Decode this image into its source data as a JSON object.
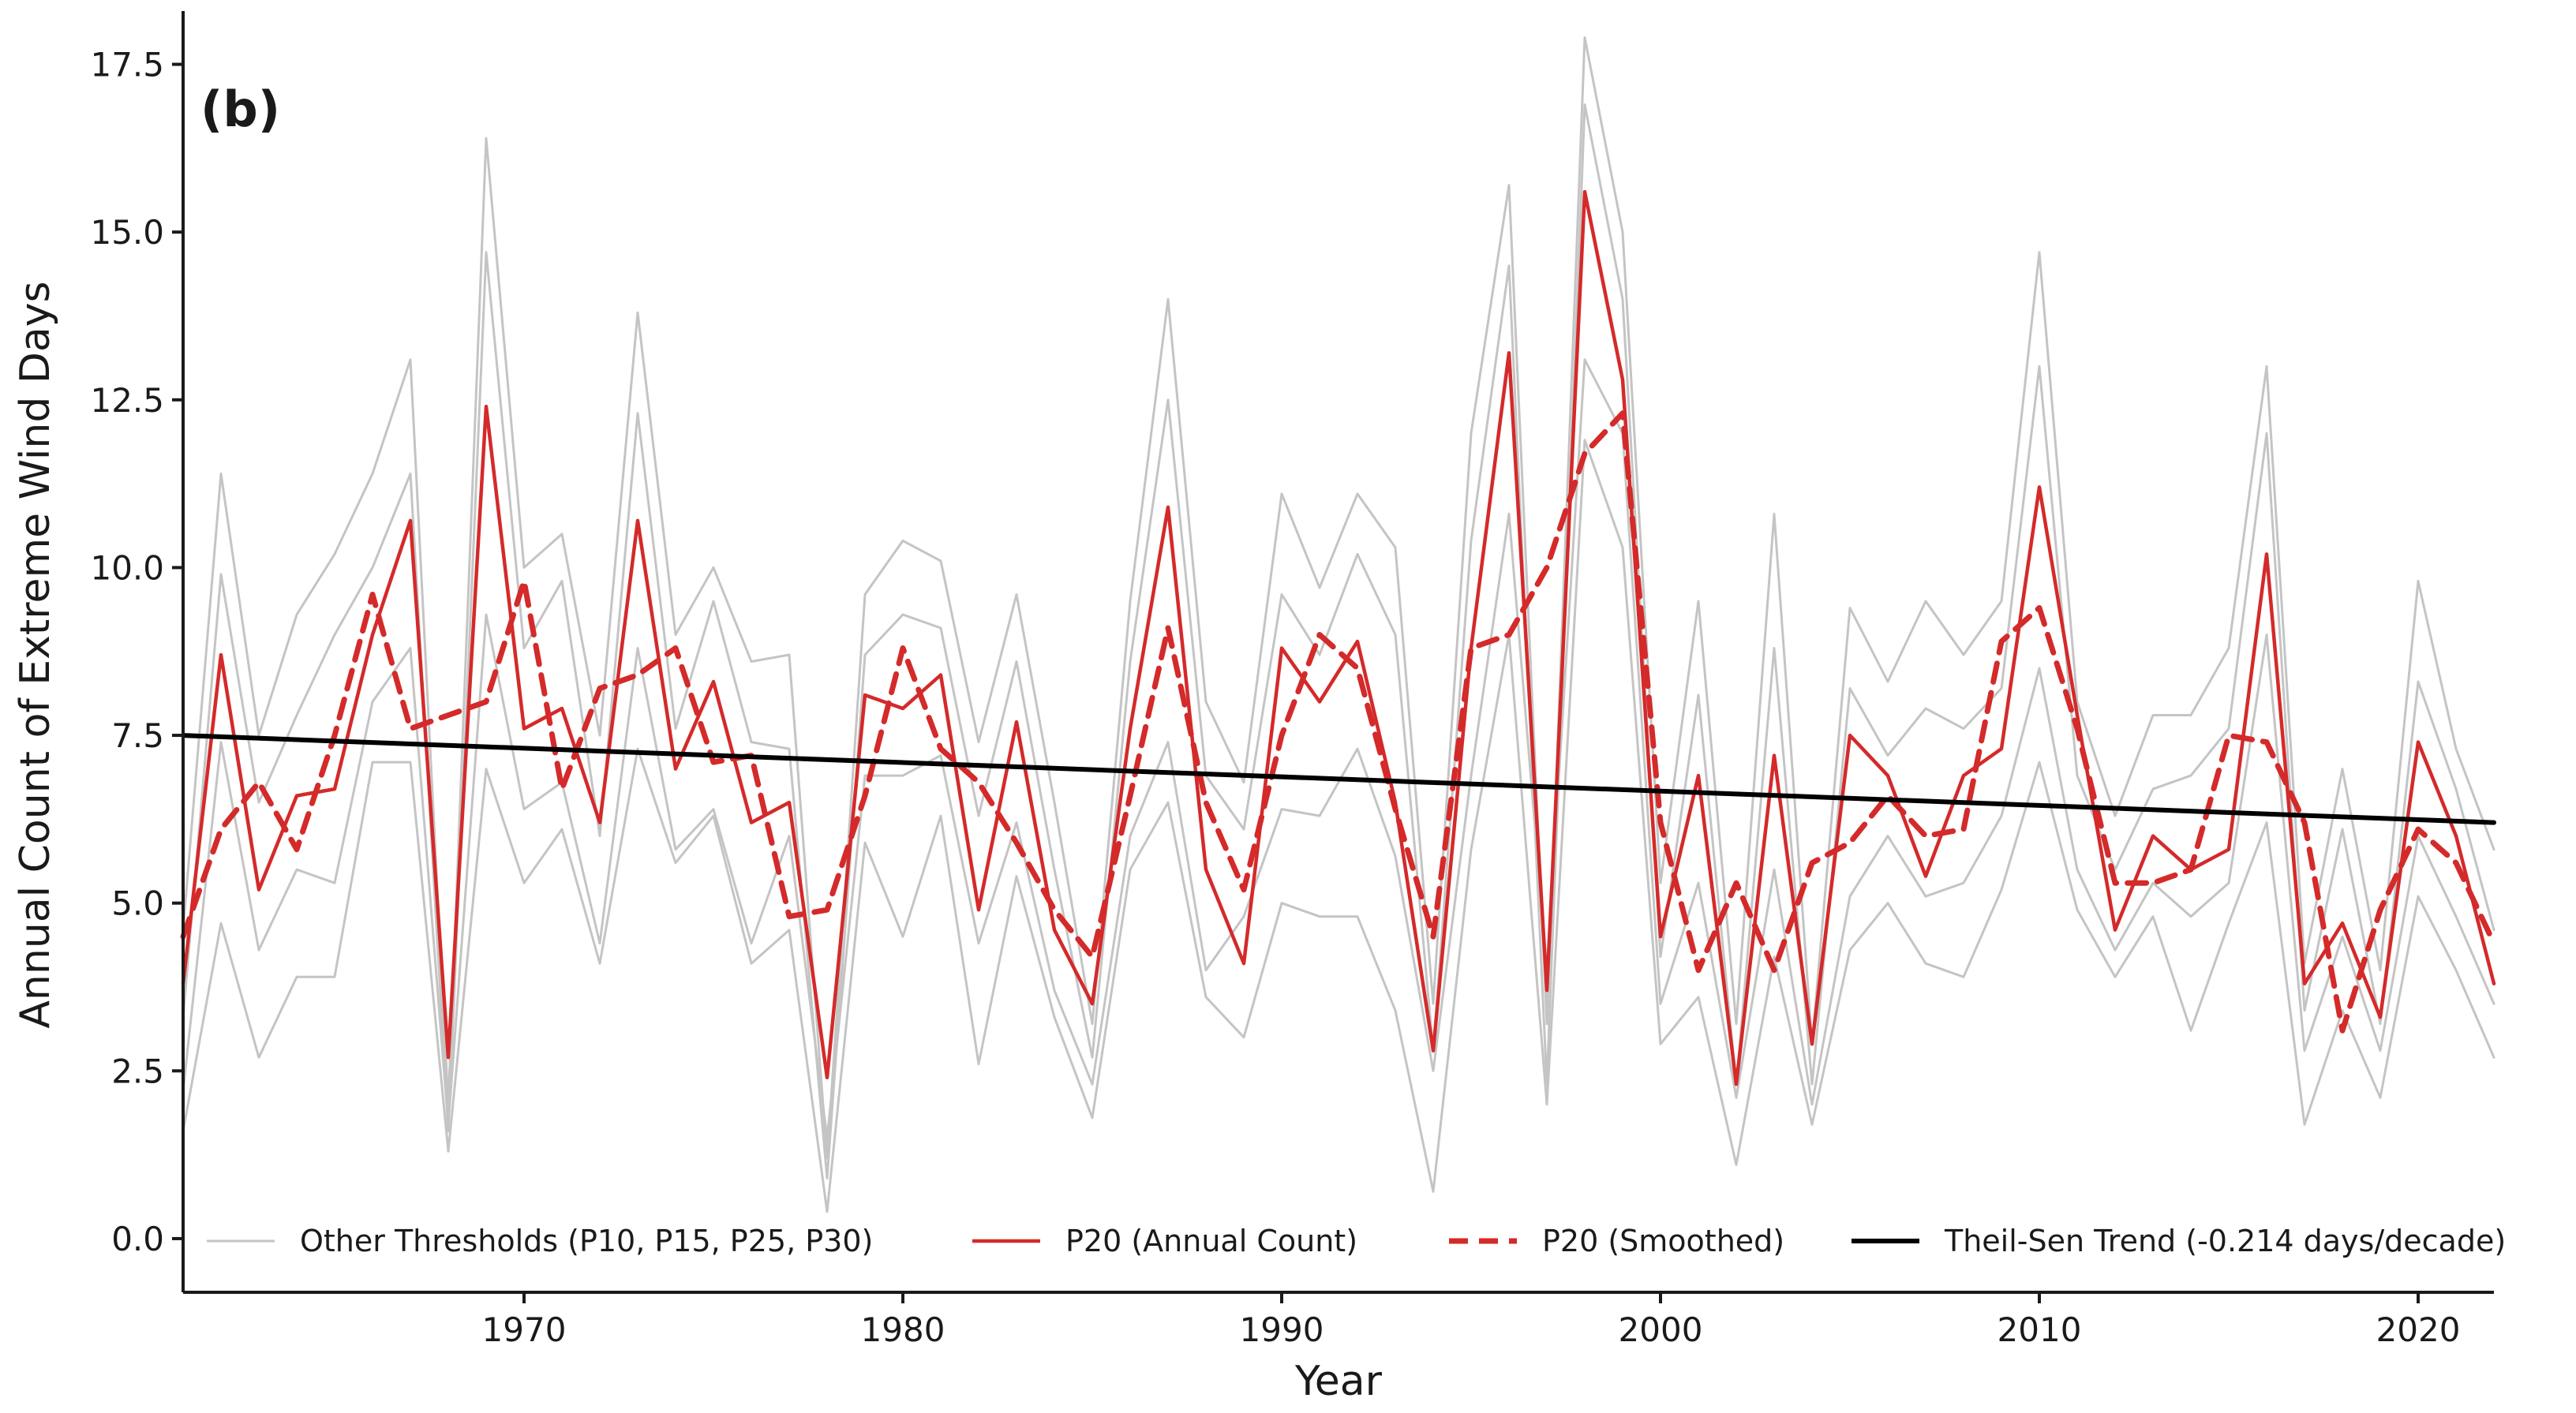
{
  "chart_data": {
    "type": "line",
    "panel_label": "(b)",
    "xlabel": "Year",
    "ylabel": "Annual Count of Extreme Wind Days",
    "xlim": [
      1961,
      2022
    ],
    "ylim": [
      -0.8,
      18.2
    ],
    "x_ticks": [
      1970,
      1980,
      1990,
      2000,
      2010,
      2020
    ],
    "y_ticks": [
      0.0,
      2.5,
      5.0,
      7.5,
      10.0,
      12.5,
      15.0,
      17.5
    ],
    "y_tick_labels": [
      "0.0",
      "2.5",
      "5.0",
      "7.5",
      "10.0",
      "12.5",
      "15.0",
      "17.5"
    ],
    "grid": false,
    "legend_position": "bottom",
    "x": [
      1961,
      1962,
      1963,
      1964,
      1965,
      1966,
      1967,
      1968,
      1969,
      1970,
      1971,
      1972,
      1973,
      1974,
      1975,
      1976,
      1977,
      1978,
      1979,
      1980,
      1981,
      1982,
      1983,
      1984,
      1985,
      1986,
      1987,
      1988,
      1989,
      1990,
      1991,
      1992,
      1993,
      1994,
      1995,
      1996,
      1997,
      1998,
      1999,
      2000,
      2001,
      2002,
      2003,
      2004,
      2005,
      2006,
      2007,
      2008,
      2009,
      2010,
      2011,
      2012,
      2013,
      2014,
      2015,
      2016,
      2017,
      2018,
      2019,
      2020,
      2021,
      2022
    ],
    "series": [
      {
        "name": "P10",
        "style": "other",
        "values": [
          4.6,
          11.4,
          7.5,
          9.3,
          10.2,
          11.4,
          13.1,
          2.0,
          16.4,
          10.0,
          10.5,
          7.5,
          13.8,
          9.0,
          10.0,
          8.6,
          8.7,
          1.2,
          9.6,
          10.4,
          10.1,
          7.4,
          9.6,
          6.5,
          3.2,
          9.5,
          14.0,
          8.0,
          6.8,
          11.1,
          9.7,
          11.1,
          10.3,
          3.5,
          12.0,
          15.7,
          3.2,
          17.9,
          15.0,
          5.3,
          9.5,
          3.2,
          10.8,
          2.9,
          9.4,
          8.3,
          9.5,
          8.7,
          9.5,
          14.7,
          8.0,
          6.3,
          7.8,
          7.8,
          8.8,
          13.0,
          4.1,
          7.0,
          4.0,
          9.8,
          7.3,
          5.8
        ]
      },
      {
        "name": "P15",
        "style": "other",
        "values": [
          3.3,
          9.9,
          6.5,
          7.8,
          9.0,
          10.0,
          11.4,
          1.6,
          14.7,
          8.8,
          9.8,
          6.0,
          12.3,
          7.6,
          9.5,
          7.4,
          7.3,
          0.9,
          8.7,
          9.3,
          9.1,
          6.3,
          8.6,
          5.5,
          2.7,
          8.6,
          12.5,
          6.9,
          6.1,
          9.6,
          8.7,
          10.2,
          9.0,
          2.8,
          10.4,
          14.5,
          2.3,
          16.9,
          14.0,
          4.2,
          8.1,
          2.3,
          8.8,
          2.3,
          8.2,
          7.2,
          7.9,
          7.6,
          8.2,
          13.0,
          6.9,
          5.5,
          6.7,
          6.9,
          7.6,
          12.0,
          3.4,
          6.1,
          3.2,
          8.3,
          6.7,
          4.6
        ]
      },
      {
        "name": "P25",
        "style": "other",
        "values": [
          2.2,
          7.4,
          4.3,
          5.5,
          5.3,
          8.0,
          8.8,
          1.7,
          9.3,
          6.4,
          6.8,
          4.4,
          8.8,
          5.8,
          6.4,
          4.4,
          6.0,
          1.5,
          6.9,
          6.9,
          7.2,
          4.4,
          6.2,
          3.7,
          2.3,
          6.0,
          7.4,
          4.0,
          4.8,
          6.4,
          6.3,
          7.3,
          5.7,
          2.5,
          6.9,
          10.8,
          4.0,
          13.1,
          12.0,
          3.5,
          5.3,
          2.1,
          5.5,
          2.0,
          5.1,
          6.0,
          5.1,
          5.3,
          6.3,
          8.5,
          5.5,
          4.3,
          5.3,
          4.8,
          5.3,
          9.0,
          2.8,
          4.5,
          2.8,
          6.0,
          4.8,
          3.5
        ]
      },
      {
        "name": "P30",
        "style": "other",
        "values": [
          1.6,
          4.7,
          2.7,
          3.9,
          3.9,
          7.1,
          7.1,
          1.3,
          7.0,
          5.3,
          6.1,
          4.1,
          7.3,
          5.6,
          6.3,
          4.1,
          4.6,
          0.4,
          5.9,
          4.5,
          6.3,
          2.6,
          5.4,
          3.3,
          1.8,
          5.5,
          6.5,
          3.6,
          3.0,
          5.0,
          4.8,
          4.8,
          3.4,
          0.7,
          5.8,
          9.0,
          2.0,
          11.9,
          10.3,
          2.9,
          3.6,
          1.1,
          4.2,
          1.7,
          4.3,
          5.0,
          4.1,
          3.9,
          5.2,
          7.1,
          4.9,
          3.9,
          4.8,
          3.1,
          4.7,
          6.2,
          1.7,
          3.4,
          2.1,
          5.1,
          4.0,
          2.7
        ]
      },
      {
        "name": "P20 (Annual Count)",
        "style": "annual",
        "values": [
          3.8,
          8.7,
          5.2,
          6.6,
          6.7,
          9.0,
          10.7,
          2.7,
          12.4,
          7.6,
          7.9,
          6.2,
          10.7,
          7.0,
          8.3,
          6.2,
          6.5,
          2.4,
          8.1,
          7.9,
          8.4,
          4.9,
          7.7,
          4.6,
          3.5,
          7.6,
          10.9,
          5.5,
          4.1,
          8.8,
          8.0,
          8.9,
          6.5,
          2.8,
          8.8,
          13.2,
          3.7,
          15.6,
          12.8,
          4.5,
          6.9,
          2.3,
          7.2,
          2.9,
          7.5,
          6.9,
          5.4,
          6.9,
          7.3,
          11.2,
          7.8,
          4.6,
          6.0,
          5.5,
          5.8,
          10.2,
          3.8,
          4.7,
          3.3,
          7.4,
          6.0,
          3.8
        ]
      },
      {
        "name": "P20 (Smoothed)",
        "style": "smoothed",
        "values": [
          4.5,
          6.1,
          6.8,
          5.8,
          7.5,
          9.6,
          7.6,
          7.8,
          8.0,
          9.8,
          6.7,
          8.2,
          8.4,
          8.8,
          7.1,
          7.2,
          4.8,
          4.9,
          6.6,
          8.8,
          7.3,
          6.8,
          5.9,
          4.9,
          4.2,
          6.6,
          9.1,
          6.5,
          5.2,
          7.5,
          9.0,
          8.5,
          6.4,
          4.5,
          8.8,
          9.0,
          10.0,
          11.7,
          12.3,
          6.2,
          4.0,
          5.3,
          4.0,
          5.6,
          5.9,
          6.6,
          6.0,
          6.1,
          8.9,
          9.4,
          7.6,
          5.3,
          5.3,
          5.5,
          7.5,
          7.4,
          6.2,
          3.1,
          4.9,
          6.1,
          5.6,
          4.4
        ]
      },
      {
        "name": "Theil-Sen Trend",
        "style": "trend",
        "x": [
          1961,
          2022
        ],
        "values": [
          7.5,
          6.2
        ]
      }
    ],
    "legend": [
      {
        "label": "Other Thresholds (P10, P15, P25, P30)",
        "style": "other"
      },
      {
        "label": "P20 (Annual Count)",
        "style": "annual"
      },
      {
        "label": "P20 (Smoothed)",
        "style": "smoothed"
      },
      {
        "label": "Theil-Sen Trend (-0.214 days/decade)",
        "style": "trend"
      }
    ],
    "colors": {
      "other": "#c4c4c4",
      "annual": "#d42a2a",
      "smoothed": "#d42a2a",
      "trend": "#000000",
      "axis": "#1a1a1a"
    }
  }
}
